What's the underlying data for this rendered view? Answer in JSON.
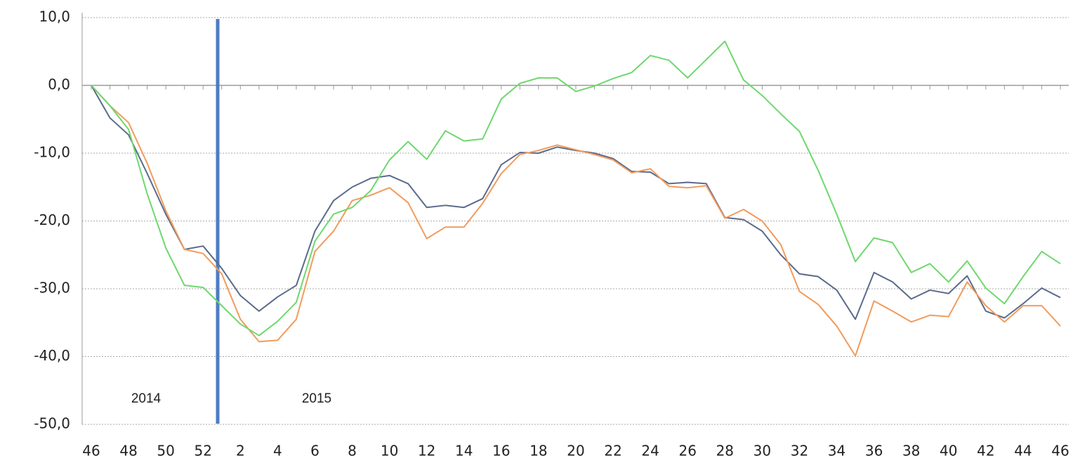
{
  "chart_data": {
    "type": "line",
    "categories": [
      "46",
      null,
      "48",
      null,
      "50",
      null,
      "52",
      null,
      "2",
      null,
      "4",
      null,
      "6",
      null,
      "8",
      null,
      "10",
      null,
      "12",
      null,
      "14",
      null,
      "16",
      null,
      "18",
      null,
      "20",
      null,
      "22",
      null,
      "24",
      null,
      "26",
      null,
      "28",
      null,
      "30",
      null,
      "32",
      null,
      "34",
      null,
      "36",
      null,
      "38",
      null,
      "40",
      null,
      "42",
      null,
      "44",
      null,
      "46"
    ],
    "series": [
      {
        "color": "#5b6b8a",
        "values": [
          0,
          -4.8,
          -7.3,
          -13,
          -19,
          -24.2,
          -23.7,
          -27,
          -31,
          -33.3,
          -31.2,
          -29.5,
          -21.5,
          -17,
          -15,
          -13.7,
          -13.3,
          -14.5,
          -18,
          -17.7,
          -18,
          -16.7,
          -11.7,
          -9.9,
          -10,
          -9.1,
          -9.6,
          -10,
          -10.8,
          -12.7,
          -12.8,
          -14.5,
          -14.3,
          -14.5,
          -19.5,
          -19.8,
          -21.5,
          -25,
          -27.8,
          -28.2,
          -30.2,
          -34.5,
          -27.6,
          -29,
          -31.5,
          -30.2,
          -30.7,
          -28.1,
          -33.3,
          -34.3,
          -32.2,
          -29.9,
          -31.3
        ]
      },
      {
        "color": "#f29b5c",
        "values": [
          0,
          -3,
          -5.5,
          -11.5,
          -18.5,
          -24.2,
          -24.8,
          -27.8,
          -34.5,
          -37.8,
          -37.6,
          -34.5,
          -24.5,
          -21.5,
          -17,
          -16.2,
          -15.1,
          -17.3,
          -22.6,
          -20.9,
          -20.9,
          -17.4,
          -13,
          -10.2,
          -9.6,
          -8.8,
          -9.5,
          -10.2,
          -11,
          -12.9,
          -12.3,
          -14.9,
          -15.1,
          -14.8,
          -19.6,
          -18.3,
          -20,
          -23.5,
          -30.4,
          -32.3,
          -35.5,
          -39.9,
          -31.8,
          -33.3,
          -34.9,
          -33.9,
          -34.1,
          -29,
          -32.5,
          -34.9,
          -32.5,
          -32.5,
          -35.5
        ]
      },
      {
        "color": "#6ed86e",
        "values": [
          0,
          -3,
          -6.5,
          -16,
          -24,
          -29.5,
          -29.8,
          -32.5,
          -35.2,
          -36.9,
          -34.8,
          -32,
          -23,
          -19,
          -18,
          -15.5,
          -11,
          -8.3,
          -10.9,
          -6.7,
          -8.2,
          -7.9,
          -2,
          0.3,
          1.1,
          1.1,
          -0.9,
          -0.1,
          1,
          1.9,
          4.4,
          3.7,
          1.1,
          3.8,
          6.5,
          0.8,
          -1.5,
          -4.2,
          -6.8,
          -12.5,
          -19,
          -26,
          -22.5,
          -23.2,
          -27.6,
          -26.3,
          -29,
          -25.9,
          -29.9,
          -32.2,
          -28.2,
          -24.5,
          -26.3
        ]
      }
    ],
    "ylim": [
      -50,
      10
    ],
    "yticks": [
      {
        "value": -50,
        "label": "-50,0"
      },
      {
        "value": -40,
        "label": "-40,0"
      },
      {
        "value": -30,
        "label": "-30,0"
      },
      {
        "value": -20,
        "label": "-20,0"
      },
      {
        "value": -10,
        "label": "-10,0"
      },
      {
        "value": 0,
        "label": "0,0"
      },
      {
        "value": 10,
        "label": "10,0"
      }
    ],
    "grid": true,
    "annotations": [
      "2014",
      "2015"
    ]
  }
}
